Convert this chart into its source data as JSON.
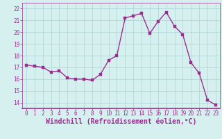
{
  "x": [
    0,
    1,
    2,
    3,
    4,
    5,
    6,
    7,
    8,
    9,
    10,
    11,
    12,
    13,
    14,
    15,
    16,
    17,
    18,
    19,
    20,
    21,
    22,
    23
  ],
  "y": [
    17.2,
    17.1,
    17.0,
    16.6,
    16.7,
    16.1,
    16.0,
    16.0,
    15.9,
    16.4,
    17.6,
    18.0,
    21.2,
    21.4,
    21.6,
    19.9,
    20.9,
    21.7,
    20.5,
    19.8,
    17.4,
    16.5,
    14.2,
    13.8
  ],
  "line_color": "#9b2d8e",
  "marker_color": "#9b2d8e",
  "bg_color": "#d6f0f0",
  "grid_color": "#b8dada",
  "xlabel": "Windchill (Refroidissement éolien,°C)",
  "ylabel": "",
  "ylim": [
    13.5,
    22.5
  ],
  "xlim": [
    -0.5,
    23.5
  ],
  "yticks": [
    14,
    15,
    16,
    17,
    18,
    19,
    20,
    21,
    22
  ],
  "xticks": [
    0,
    1,
    2,
    3,
    4,
    5,
    6,
    7,
    8,
    9,
    10,
    11,
    12,
    13,
    14,
    15,
    16,
    17,
    18,
    19,
    20,
    21,
    22,
    23
  ],
  "tick_label_fontsize": 5.5,
  "xlabel_fontsize": 7.0,
  "line_width": 1.0,
  "marker_size": 2.2
}
